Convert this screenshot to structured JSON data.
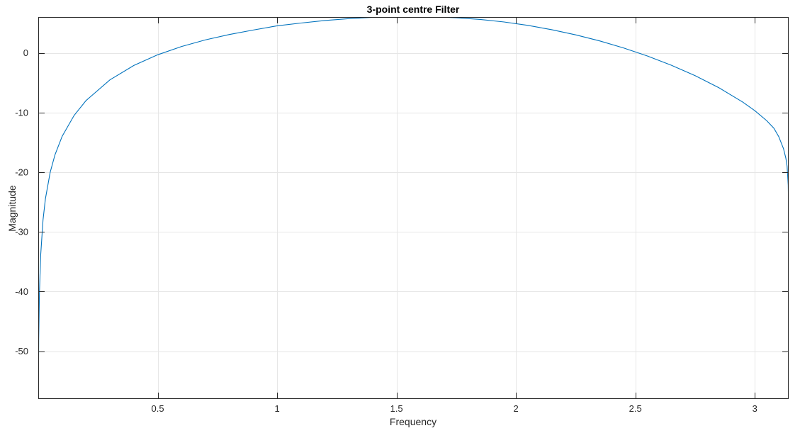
{
  "chart_data": {
    "type": "line",
    "title": "3-point centre Filter",
    "xlabel": "Frequency",
    "ylabel": "Magnitude",
    "xlim": [
      0,
      3.1416
    ],
    "ylim": [
      -58,
      6
    ],
    "xticks": [
      0.5,
      1,
      1.5,
      2,
      2.5,
      3
    ],
    "xtick_labels": [
      "0.5",
      "1",
      "1.5",
      "2",
      "2.5",
      "3"
    ],
    "yticks": [
      -50,
      -40,
      -30,
      -20,
      -10,
      0
    ],
    "ytick_labels": [
      "-50",
      "-40",
      "-30",
      "-20",
      "-10",
      "0"
    ],
    "grid": true,
    "line_color": "#0072BD",
    "series": [
      {
        "function": "20*log10(2*sin(w))",
        "x": [
          0.0005,
          0.002,
          0.005,
          0.01,
          0.02,
          0.03,
          0.05,
          0.07,
          0.1,
          0.15,
          0.2,
          0.3,
          0.4,
          0.5,
          0.6,
          0.7,
          0.8,
          0.9,
          1.0,
          1.1,
          1.2,
          1.3,
          1.4,
          1.5,
          1.5708,
          1.65,
          1.75,
          1.85,
          1.95,
          2.05,
          2.15,
          2.25,
          2.35,
          2.45,
          2.55,
          2.65,
          2.75,
          2.85,
          2.95,
          3.0,
          3.05,
          3.08,
          3.1,
          3.12,
          3.13,
          3.135,
          3.1396,
          3.1411
        ],
        "y": [
          -60.0,
          -47.96,
          -40.0,
          -33.98,
          -27.96,
          -24.44,
          -20.0,
          -17.08,
          -13.99,
          -10.49,
          -8.0,
          -4.53,
          -2.12,
          -0.33,
          1.06,
          2.17,
          3.07,
          3.82,
          4.52,
          4.99,
          5.41,
          5.73,
          5.94,
          6.04,
          6.02,
          6.04,
          5.87,
          5.59,
          5.17,
          4.6,
          3.87,
          3.01,
          2.0,
          0.82,
          -0.53,
          -2.07,
          -3.83,
          -5.86,
          -8.27,
          -9.7,
          -11.38,
          -12.65,
          -14.03,
          -16.06,
          -17.69,
          -18.99,
          -22.14,
          -26.02
        ]
      }
    ]
  }
}
